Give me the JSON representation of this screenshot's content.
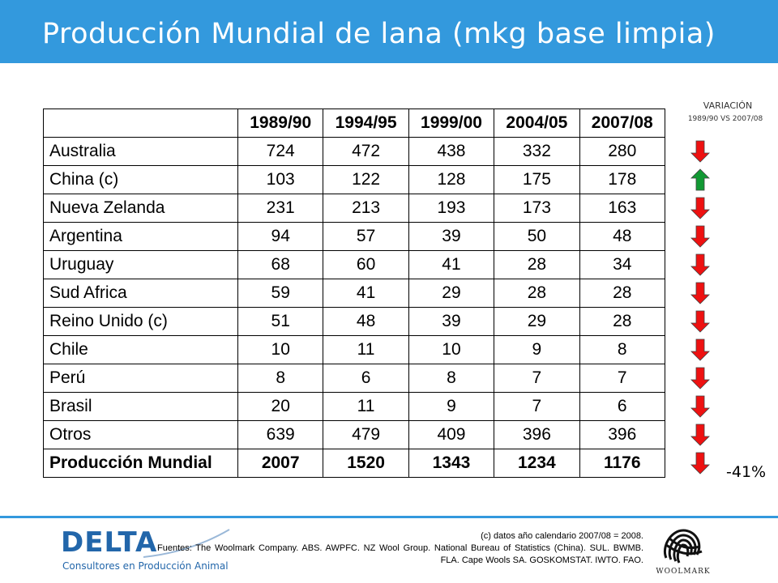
{
  "header": {
    "title": "Producción Mundial de lana (mkg base limpia)"
  },
  "variation": {
    "title": "VARIACIÓN",
    "subtitle": "1989/90 VS 2007/08",
    "total_change": "-41%"
  },
  "table": {
    "columns": [
      "1989/90",
      "1994/95",
      "1999/00",
      "2004/05",
      "2007/08"
    ],
    "rows": [
      {
        "country": "Australia",
        "values": [
          "724",
          "472",
          "438",
          "332",
          "280"
        ],
        "trend": "down"
      },
      {
        "country": "China (c)",
        "values": [
          "103",
          "122",
          "128",
          "175",
          "178"
        ],
        "trend": "up"
      },
      {
        "country": "Nueva Zelanda",
        "values": [
          "231",
          "213",
          "193",
          "173",
          "163"
        ],
        "trend": "down"
      },
      {
        "country": "Argentina",
        "values": [
          "94",
          "57",
          "39",
          "50",
          "48"
        ],
        "trend": "down"
      },
      {
        "country": "Uruguay",
        "values": [
          "68",
          "60",
          "41",
          "28",
          "34"
        ],
        "trend": "down"
      },
      {
        "country": "Sud Africa",
        "values": [
          "59",
          "41",
          "29",
          "28",
          "28"
        ],
        "trend": "down"
      },
      {
        "country": "Reino Unido (c)",
        "values": [
          "51",
          "48",
          "39",
          "29",
          "28"
        ],
        "trend": "down"
      },
      {
        "country": "Chile",
        "values": [
          "10",
          "11",
          "10",
          "9",
          "8"
        ],
        "trend": "down"
      },
      {
        "country": "Perú",
        "values": [
          "8",
          "6",
          "8",
          "7",
          "7"
        ],
        "trend": "down"
      },
      {
        "country": "Brasil",
        "values": [
          "20",
          "11",
          "9",
          "7",
          "6"
        ],
        "trend": "down"
      },
      {
        "country": "Otros",
        "values": [
          "639",
          "479",
          "409",
          "396",
          "396"
        ],
        "trend": "down"
      }
    ],
    "total": {
      "country": "Producción Mundial",
      "values": [
        "2007",
        "1520",
        "1343",
        "1234",
        "1176"
      ],
      "trend": "down"
    }
  },
  "colors": {
    "title_bar": "#3399dd",
    "down_arrow": "#ee1111",
    "up_arrow": "#119933"
  },
  "footer": {
    "note": "(c) datos año calendario 2007/08 = 2008.",
    "sources": "Fuentes: The Woolmark Company. ABS. AWPFC. NZ Wool Group. National Bureau of Statistics (China). SUL. BWMB. FLA. Cape Wools SA. GOSKOMSTAT. IWTO. FAO.",
    "logo_left": {
      "word": "DELTA",
      "tagline": "Consultores en Producción Animal"
    },
    "logo_right": {
      "word": "WOOLMARK",
      "icon": "woolmark-icon"
    }
  }
}
